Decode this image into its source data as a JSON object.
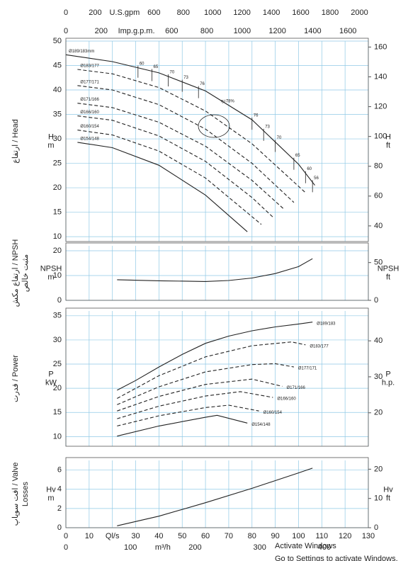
{
  "chart_data": [
    {
      "type": "line",
      "ylabel": [
        "ارتفاع / Head"
      ],
      "y_unit": [
        "H",
        "m"
      ],
      "y2_unit": [
        "H",
        "ft"
      ],
      "xlim": [
        0,
        130
      ],
      "ylim": [
        9,
        50
      ],
      "yticks": [
        10,
        15,
        20,
        25,
        30,
        35,
        40,
        45,
        50
      ],
      "y2lim": [
        29.5,
        164
      ],
      "y2ticks": [
        40,
        60,
        80,
        100,
        120,
        140,
        160
      ],
      "grid": true,
      "label_at": "start",
      "series": [
        {
          "name": "Ø189/183mm",
          "color": "#222222",
          "dashed": false,
          "x": [
            0,
            20,
            40,
            60,
            80,
            100,
            107
          ],
          "values": [
            47.2,
            45.8,
            43.5,
            39.8,
            33.9,
            24.8,
            20.5
          ]
        },
        {
          "name": "Ø183/177",
          "color": "#222222",
          "dashed": true,
          "x": [
            5,
            20,
            40,
            60,
            80,
            103
          ],
          "values": [
            44.2,
            43.3,
            40.5,
            35.7,
            29.0,
            19.0
          ]
        },
        {
          "name": "Ø177/171",
          "color": "#222222",
          "dashed": true,
          "x": [
            5,
            20,
            40,
            60,
            80,
            98
          ],
          "values": [
            40.9,
            40.0,
            37.0,
            32.0,
            25.0,
            17.0
          ]
        },
        {
          "name": "Ø171/166",
          "color": "#222222",
          "dashed": true,
          "x": [
            5,
            20,
            40,
            60,
            80,
            94
          ],
          "values": [
            37.3,
            36.4,
            33.4,
            28.5,
            21.5,
            15.5
          ]
        },
        {
          "name": "Ø166/160",
          "color": "#222222",
          "dashed": true,
          "x": [
            5,
            20,
            40,
            60,
            80,
            89
          ],
          "values": [
            34.7,
            33.8,
            30.6,
            25.4,
            18.0,
            14.0
          ]
        },
        {
          "name": "Ø160/154",
          "color": "#222222",
          "dashed": true,
          "x": [
            5,
            20,
            40,
            60,
            84
          ],
          "values": [
            31.8,
            30.8,
            27.5,
            22.0,
            12.5
          ]
        },
        {
          "name": "Ø154/148",
          "color": "#222222",
          "dashed": false,
          "x": [
            5,
            20,
            40,
            60,
            78
          ],
          "values": [
            29.3,
            28.2,
            24.6,
            18.5,
            11.0
          ]
        }
      ],
      "efficiency": {
        "x": [
          31,
          37,
          44,
          50,
          57,
          80,
          85,
          90,
          98,
          103,
          106
        ],
        "values": [
          60,
          65,
          70,
          73,
          76,
          76,
          73,
          70,
          65,
          60,
          56
        ]
      },
      "annotations": [
        "η=78%"
      ]
    },
    {
      "type": "line",
      "ylabel": [
        "ارتفاع مکش / NPSH",
        "مثبت خالص"
      ],
      "y_unit": [
        "NPSH",
        "m"
      ],
      "y2_unit": [
        "NPSH",
        "ft"
      ],
      "xlim": [
        0,
        130
      ],
      "ylim": [
        0,
        22
      ],
      "yticks": [
        0,
        10,
        20
      ],
      "y2lim": [
        0,
        72.2
      ],
      "y2ticks": [
        0,
        50
      ],
      "grid": true,
      "series": [
        {
          "color": "#222222",
          "dashed": false,
          "x": [
            22,
            40,
            60,
            70,
            80,
            90,
            100,
            106
          ],
          "values": [
            8.3,
            7.9,
            7.6,
            8.0,
            9.0,
            10.8,
            13.6,
            16.8
          ]
        }
      ]
    },
    {
      "type": "line",
      "ylabel": [
        "قدرت / Power"
      ],
      "y_unit": [
        "P",
        "kW"
      ],
      "y2_unit": [
        "P",
        "h.p."
      ],
      "xlim": [
        0,
        130
      ],
      "ylim": [
        8,
        36
      ],
      "yticks": [
        10,
        15,
        20,
        25,
        30,
        35
      ],
      "y2lim": [
        10.7,
        48.3
      ],
      "y2ticks": [
        20,
        30,
        40
      ],
      "grid": true,
      "label_at": "end",
      "series": [
        {
          "name": "Ø189/183",
          "color": "#222222",
          "dashed": false,
          "x": [
            22,
            30,
            40,
            50,
            60,
            70,
            80,
            90,
            100,
            106
          ],
          "values": [
            19.6,
            21.6,
            24.4,
            27,
            29.3,
            30.8,
            31.9,
            32.7,
            33.3,
            33.7
          ]
        },
        {
          "name": "Ø183/177",
          "color": "#222222",
          "dashed": true,
          "x": [
            22,
            40,
            60,
            80,
            97,
            103
          ],
          "values": [
            17.9,
            22.6,
            26.5,
            28.8,
            29.6,
            29.0
          ]
        },
        {
          "name": "Ø177/171",
          "color": "#222222",
          "dashed": true,
          "x": [
            22,
            40,
            60,
            80,
            90,
            98
          ],
          "values": [
            16.6,
            20.3,
            23.4,
            24.9,
            25.1,
            24.4
          ]
        },
        {
          "name": "Ø171/166",
          "color": "#222222",
          "dashed": true,
          "x": [
            22,
            40,
            60,
            80,
            93
          ],
          "values": [
            15.3,
            18.3,
            20.8,
            21.9,
            20.4
          ]
        },
        {
          "name": "Ø166/160",
          "color": "#222222",
          "dashed": true,
          "x": [
            22,
            40,
            60,
            75,
            89
          ],
          "values": [
            13.7,
            16.3,
            18.4,
            19.3,
            18.1
          ]
        },
        {
          "name": "Ø160/154",
          "color": "#222222",
          "dashed": true,
          "x": [
            22,
            40,
            60,
            70,
            83
          ],
          "values": [
            12.2,
            14.3,
            16.0,
            16.5,
            15.3
          ]
        },
        {
          "name": "Ø154/148",
          "color": "#222222",
          "dashed": false,
          "x": [
            22,
            40,
            60,
            65,
            78
          ],
          "values": [
            10.1,
            12.2,
            14.0,
            14.4,
            12.8
          ]
        }
      ]
    },
    {
      "type": "line",
      "ylabel": [
        "افت سوپاپ / Valve",
        "Losses"
      ],
      "y_unit": [
        "Hv",
        "m"
      ],
      "y2_unit": [
        "Hv",
        "ft"
      ],
      "xlim": [
        0,
        130
      ],
      "ylim": [
        0,
        7
      ],
      "yticks": [
        0,
        2,
        4,
        6
      ],
      "y2lim": [
        0,
        23
      ],
      "y2ticks": [
        0,
        10,
        20
      ],
      "grid": true,
      "series": [
        {
          "color": "#222222",
          "dashed": false,
          "x": [
            22,
            40,
            60,
            80,
            100,
            106
          ],
          "values": [
            0.2,
            1.2,
            2.6,
            4.1,
            5.7,
            6.2
          ]
        }
      ]
    }
  ],
  "flow_axes": [
    {
      "xlim": [
        0,
        2060.5
      ],
      "xticks": [
        0,
        200,
        {
          "value": 400,
          "label": "U.S.gpm"
        },
        600,
        800,
        1000,
        1200,
        1400,
        1600,
        1800,
        2000
      ]
    },
    {
      "xlim": [
        0,
        1715.7
      ],
      "xticks": [
        0,
        200,
        {
          "value": 400,
          "label": "Imp.g.p.m."
        },
        600,
        800,
        1000,
        1200,
        1400,
        1600
      ]
    },
    {
      "xlim": [
        0,
        130
      ],
      "xticks": [
        0,
        10,
        {
          "value": 20,
          "label": "Ql/s"
        },
        30,
        40,
        50,
        60,
        70,
        80,
        90,
        100,
        110,
        120,
        130
      ]
    },
    {
      "xlim": [
        0,
        468
      ],
      "xticks": [
        0,
        100,
        {
          "value": 150,
          "label": "m³/h"
        },
        200,
        300,
        400
      ]
    }
  ],
  "watermark": [
    "Activate Windows",
    "Go to Settings to activate Windows."
  ]
}
